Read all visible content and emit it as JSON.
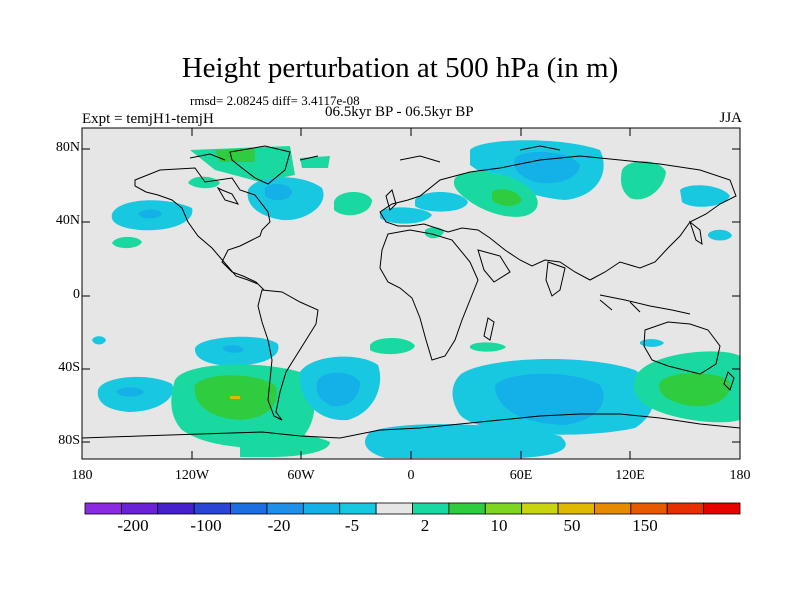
{
  "title": "Height perturbation at 500 hPa (in m)",
  "stats": "rmsd= 2.08245 diff= 3.4117e-08",
  "experiment": "Expt = temjH1-temjH",
  "period": "06.5kyr BP - 06.5kyr BP",
  "season": "JJA",
  "axes": {
    "lat_ticks": [
      "80N",
      "40N",
      "0",
      "40S",
      "80S"
    ],
    "lon_ticks": [
      "180",
      "120W",
      "60W",
      "0",
      "60E",
      "120E",
      "180"
    ]
  },
  "colorbar": {
    "colors": [
      "#8a2be2",
      "#6a22d6",
      "#4421cc",
      "#2845d6",
      "#1c6fe0",
      "#1e90e8",
      "#14b0e8",
      "#18c8e0",
      "#e6e6e6",
      "#1ad9a0",
      "#30cc40",
      "#7ed620",
      "#c8d410",
      "#e0b800",
      "#e68a00",
      "#e65a00",
      "#e63000",
      "#e60000"
    ],
    "labels": [
      "-200",
      "-100",
      "-20",
      "-5",
      "2",
      "10",
      "50",
      "150"
    ]
  },
  "colors": {
    "land_bg": "#e6e6e6",
    "neg_light": "#18c8e0",
    "neg_mid": "#14b0e8",
    "pos_light": "#1ad9a0",
    "pos_mid": "#30cc40"
  }
}
